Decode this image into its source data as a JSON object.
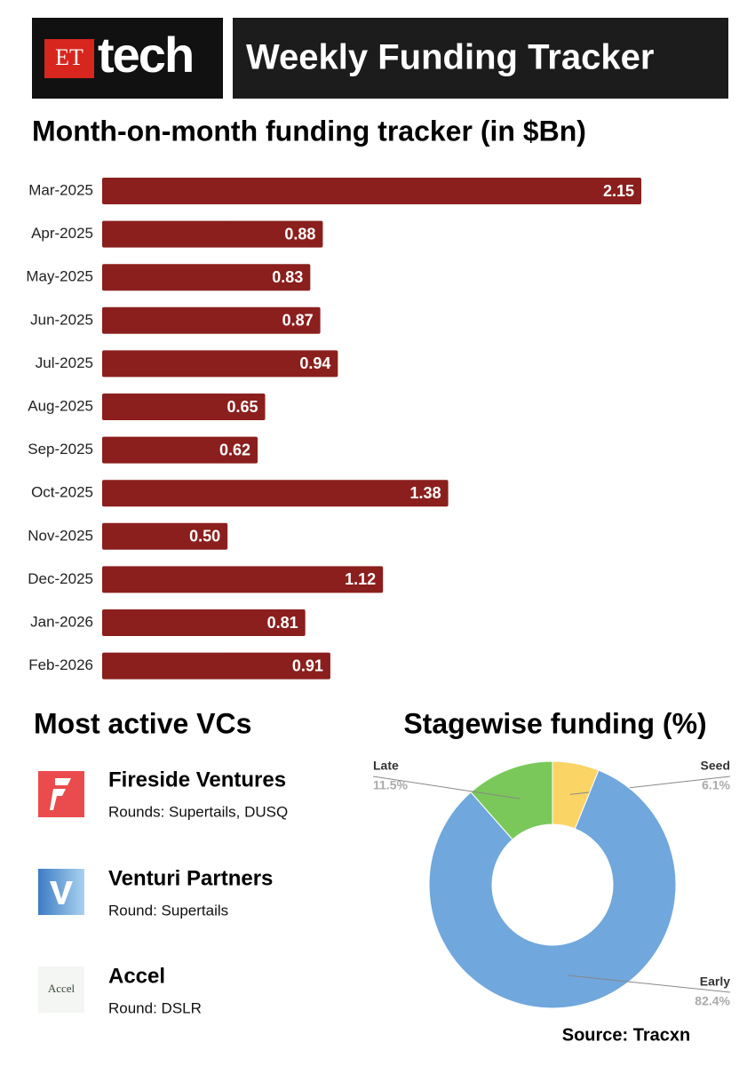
{
  "header": {
    "logo": [
      "ET",
      "tech"
    ],
    "title": "Weekly Funding Tracker"
  },
  "chart_data": [
    {
      "type": "bar",
      "title": "Month-on-month funding tracker (in $Bn)",
      "categories": [
        "Mar-2025",
        "Apr-2025",
        "May-2025",
        "Jun-2025",
        "Jul-2025",
        "Aug-2025",
        "Sep-2025",
        "Oct-2025",
        "Nov-2025",
        "Dec-2025",
        "Jan-2026",
        "Feb-2026"
      ],
      "values": [
        2.15,
        0.88,
        0.83,
        0.87,
        0.94,
        0.65,
        0.62,
        1.38,
        0.5,
        1.12,
        0.81,
        0.91
      ],
      "value_labels": [
        "2.15",
        "0.88",
        "0.83",
        "0.87",
        "0.94",
        "0.65",
        "0.62",
        "1.38",
        "0.50",
        "1.12",
        "0.81",
        "0.91"
      ],
      "color": "#8b1f1d"
    },
    {
      "type": "pie",
      "title": "Stagewise funding (%)",
      "categories": [
        "Seed",
        "Early",
        "Late"
      ],
      "values": [
        6.1,
        82.4,
        11.5
      ],
      "value_labels": [
        "6.1%",
        "82.4%",
        "11.5%"
      ],
      "colors": [
        "#fad565",
        "#70a7dc",
        "#7ac85a"
      ]
    }
  ],
  "vcs": {
    "title": "Most active VCs",
    "items": [
      {
        "name": "Fireside Ventures",
        "rounds": "Rounds: Supertails, DUSQ"
      },
      {
        "name": "Venturi Partners",
        "rounds": "Round: Supertails"
      },
      {
        "name": "Accel",
        "rounds": "Round: DSLR",
        "logo_text": "Accel"
      }
    ]
  },
  "source": "Source: Tracxn"
}
